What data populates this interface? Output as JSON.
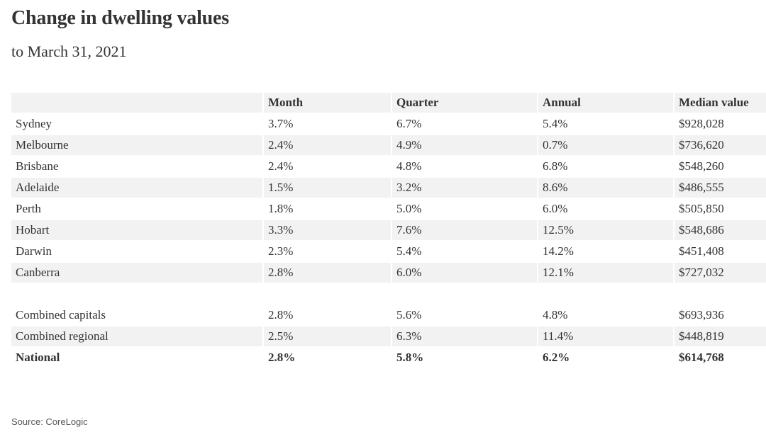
{
  "header": {
    "title": "Change in dwelling values",
    "subtitle": "to March 31, 2021"
  },
  "chart_data": {
    "type": "table",
    "title": "Change in dwelling values",
    "subtitle": "to March 31, 2021",
    "columns": [
      "",
      "Month",
      "Quarter",
      "Annual",
      "Median value"
    ],
    "groups": [
      {
        "rows": [
          [
            "Sydney",
            "3.7%",
            "6.7%",
            "5.4%",
            "$928,028"
          ],
          [
            "Melbourne",
            "2.4%",
            "4.9%",
            "0.7%",
            "$736,620"
          ],
          [
            "Brisbane",
            "2.4%",
            "4.8%",
            "6.8%",
            "$548,260"
          ],
          [
            "Adelaide",
            "1.5%",
            "3.2%",
            "8.6%",
            "$486,555"
          ],
          [
            "Perth",
            "1.8%",
            "5.0%",
            "6.0%",
            "$505,850"
          ],
          [
            "Hobart",
            "3.3%",
            "7.6%",
            "12.5%",
            "$548,686"
          ],
          [
            "Darwin",
            "2.3%",
            "5.4%",
            "14.2%",
            "$451,408"
          ],
          [
            "Canberra",
            "2.8%",
            "6.0%",
            "12.1%",
            "$727,032"
          ]
        ]
      },
      {
        "rows": [
          [
            "Combined capitals",
            "2.8%",
            "5.6%",
            "4.8%",
            "$693,936"
          ],
          [
            "Combined regional",
            "2.5%",
            "6.3%",
            "11.4%",
            "$448,819"
          ],
          [
            "National",
            "2.8%",
            "5.8%",
            "6.2%",
            "$614,768"
          ]
        ]
      }
    ],
    "bold_rows": [
      "National"
    ]
  },
  "footer": {
    "source": "Source: CoreLogic"
  }
}
